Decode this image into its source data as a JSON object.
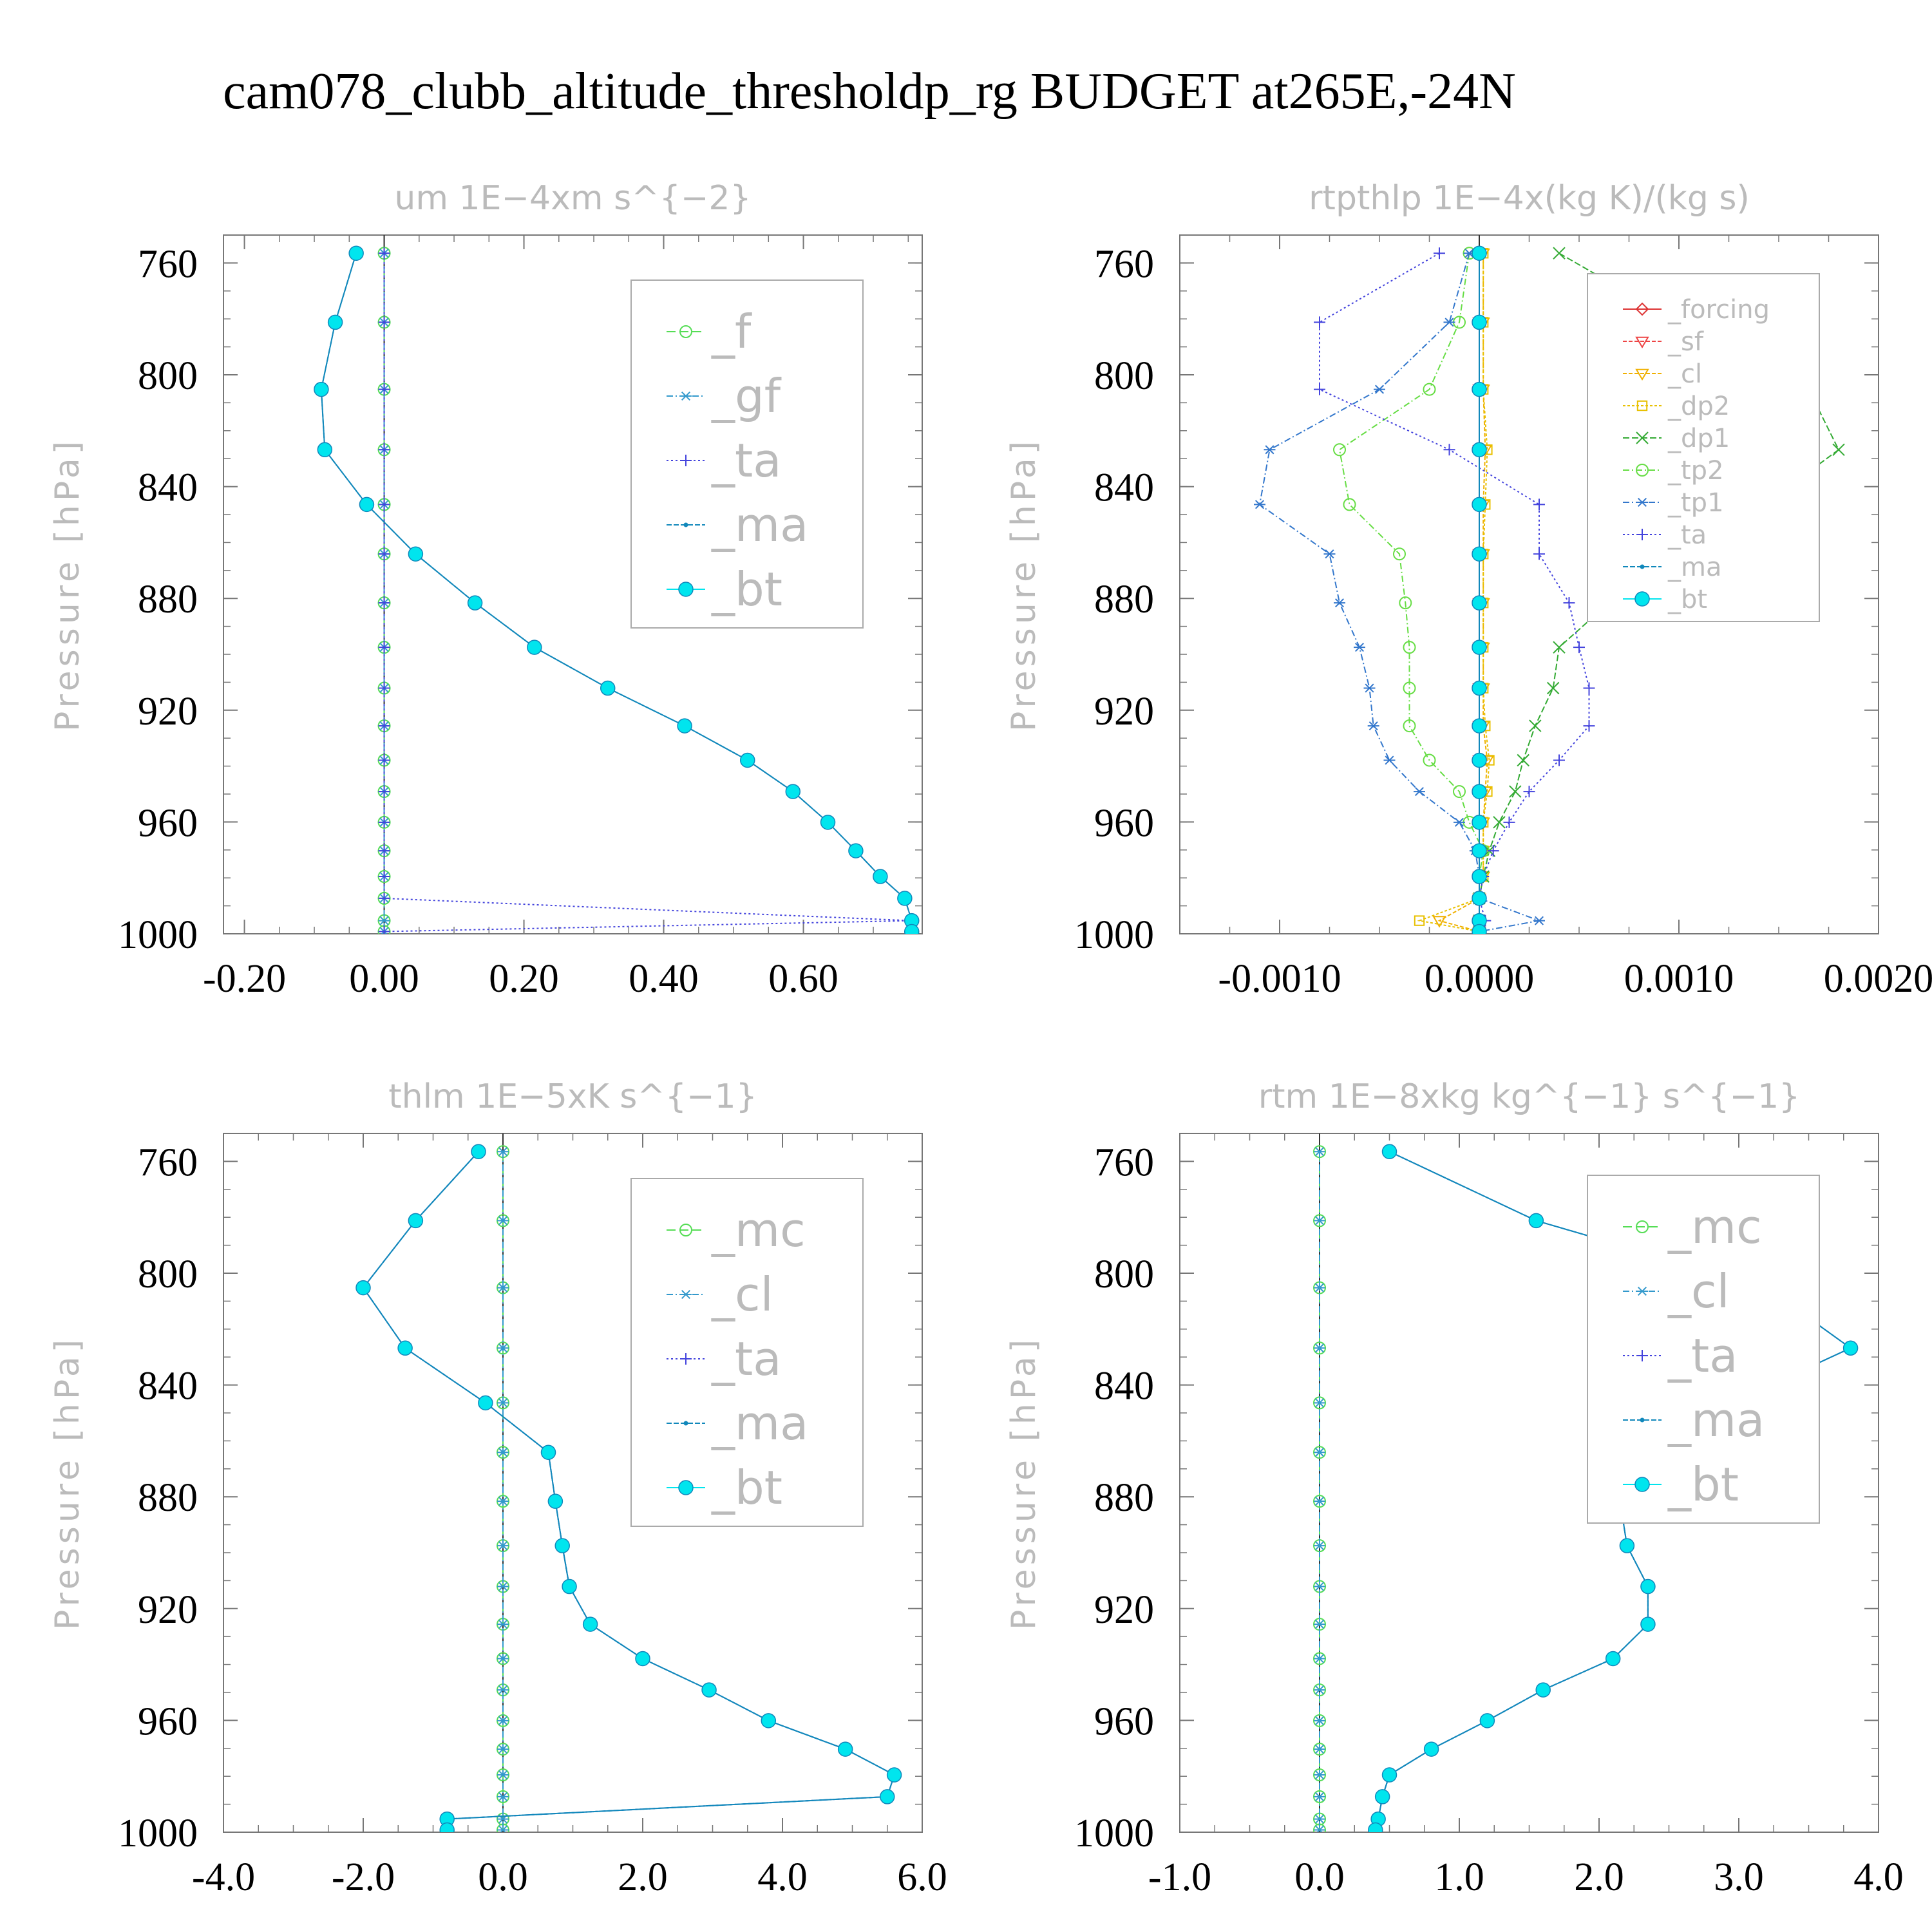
{
  "page": {
    "title": "cam078_clubb_altitude_thresholdp_rg  BUDGET at265E,-24N"
  },
  "colors": {
    "f": "#55dd55",
    "gf": "#3399cc",
    "ta": "#4444dd",
    "ma": "#1188bb",
    "bt": "#00e5ee",
    "forcing": "#dd3333",
    "sf": "#ee4444",
    "cl": "#f0b000",
    "dp2": "#e8c000",
    "dp1": "#33aa33",
    "tp2": "#66dd44",
    "tp1": "#3377cc",
    "mc": "#55dd55",
    "frame": "#777777",
    "label": "#bbbbbb"
  },
  "chart_data": [
    {
      "type": "line",
      "title": "um  1E−4xm s^{−2}",
      "ylabel": "Pressure [hPa]",
      "xlim": [
        -0.23,
        0.77
      ],
      "ylim": [
        750,
        1000
      ],
      "xticks": [
        -0.2,
        0,
        0.2,
        0.4,
        0.6
      ],
      "xtick_labels": [
        "-0.20",
        "0.00",
        "0.20",
        "0.40",
        "0.60"
      ],
      "yticks": [
        760,
        800,
        840,
        880,
        920,
        960,
        1000
      ],
      "ytick_labels": [
        "760",
        "800",
        "840",
        "880",
        "920",
        "960",
        "1000"
      ],
      "levels": [
        756.5,
        781.2,
        805.2,
        826.8,
        846.4,
        864.1,
        881.6,
        897.5,
        912.1,
        925.6,
        937.9,
        949.1,
        960.1,
        970.3,
        979.5,
        987.3,
        995.3,
        999.2
      ],
      "legend": [
        "_f",
        "_gf",
        "_ta",
        "_ma",
        "_bt"
      ],
      "series": [
        {
          "name": "_f",
          "key": "f",
          "marker": "circle",
          "dash": "14,6",
          "values": [
            0,
            0,
            0,
            0,
            0,
            0,
            0,
            0,
            0,
            0,
            0,
            0,
            0,
            0,
            0,
            0,
            0,
            0
          ]
        },
        {
          "name": "_gf",
          "key": "gf",
          "marker": "star",
          "dash": "10,4,2,4",
          "values": [
            0,
            0,
            0,
            0,
            0,
            0,
            0,
            0,
            0,
            0,
            0,
            0,
            0,
            0,
            0,
            0,
            0,
            0
          ]
        },
        {
          "name": "_ta",
          "key": "ta",
          "marker": "plus",
          "dash": "3,4",
          "values": [
            0,
            0,
            0,
            0,
            0,
            0,
            0,
            0,
            0,
            0,
            0,
            0,
            0,
            0,
            0,
            0,
            0.755,
            0
          ]
        },
        {
          "name": "_ma",
          "key": "ma",
          "marker": "dot",
          "dash": "8,3",
          "values": [
            -0.04,
            -0.07,
            -0.09,
            -0.085,
            -0.025,
            0.045,
            0.13,
            0.215,
            0.32,
            0.43,
            0.52,
            0.585,
            0.635,
            0.675,
            0.71,
            0.745,
            0.755,
            0.755
          ]
        },
        {
          "name": "_bt",
          "key": "bt",
          "marker": "fcircle",
          "dash": "",
          "values": [
            -0.04,
            -0.07,
            -0.09,
            -0.085,
            -0.025,
            0.045,
            0.13,
            0.215,
            0.32,
            0.43,
            0.52,
            0.585,
            0.635,
            0.675,
            0.71,
            0.745,
            0.755,
            0.755
          ]
        }
      ]
    },
    {
      "type": "line",
      "title": "rtpthlp  1E−4x(kg K)/(kg s)",
      "ylabel": "Pressure [hPa]",
      "xlim": [
        -0.0015,
        0.002
      ],
      "ylim": [
        750,
        1000
      ],
      "xticks": [
        -0.001,
        0,
        0.001,
        0.002
      ],
      "xtick_labels": [
        "-0.0010",
        "0.0000",
        "0.0010",
        "0.0020"
      ],
      "yticks": [
        760,
        800,
        840,
        880,
        920,
        960,
        1000
      ],
      "ytick_labels": [
        "760",
        "800",
        "840",
        "880",
        "920",
        "960",
        "1000"
      ],
      "levels": [
        756.5,
        781.2,
        805.2,
        826.8,
        846.4,
        864.1,
        881.6,
        897.5,
        912.1,
        925.6,
        937.9,
        949.1,
        960.1,
        970.3,
        979.5,
        987.3,
        995.3,
        999.2
      ],
      "legend": [
        "_forcing",
        "_sf",
        "_cl",
        "_dp2",
        "_dp1",
        "_tp2",
        "_tp1",
        "_ta",
        "_ma",
        "_bt"
      ],
      "series": [
        {
          "name": "_forcing",
          "key": "forcing",
          "marker": "diamond",
          "dash": "",
          "values": [
            0,
            0,
            0,
            0,
            0,
            0,
            0,
            0,
            0,
            0,
            0,
            0,
            0,
            0,
            0,
            0,
            0,
            0
          ]
        },
        {
          "name": "_sf",
          "key": "sf",
          "marker": "tri",
          "dash": "6,3",
          "values": [
            0,
            0,
            0,
            0,
            0,
            0,
            0,
            0,
            0,
            0,
            0,
            0,
            0,
            0,
            0,
            0,
            0,
            0
          ]
        },
        {
          "name": "_cl",
          "key": "cl",
          "marker": "tri",
          "dash": "6,3",
          "values": [
            2e-05,
            2e-05,
            2e-05,
            3e-05,
            2e-05,
            2e-05,
            2e-05,
            2e-05,
            2e-05,
            2e-05,
            4e-05,
            3e-05,
            2e-05,
            2e-05,
            2e-05,
            0,
            -0.0002,
            0
          ]
        },
        {
          "name": "_dp2",
          "key": "dp2",
          "marker": "square",
          "dash": "4,3",
          "values": [
            2e-05,
            2e-05,
            2e-05,
            4e-05,
            3e-05,
            2e-05,
            2e-05,
            2e-05,
            2e-05,
            3e-05,
            5e-05,
            4e-05,
            2e-05,
            2e-05,
            2e-05,
            0,
            -0.0003,
            0
          ]
        },
        {
          "name": "_dp1",
          "key": "dp1",
          "marker": "x",
          "dash": "10,4",
          "values": [
            0.0004,
            0.001,
            0.00165,
            0.0018,
            0.00143,
            0.00095,
            0.00065,
            0.0004,
            0.00037,
            0.00028,
            0.00022,
            0.00018,
            0.0001,
            5e-05,
            2e-05,
            0,
            0,
            0
          ]
        },
        {
          "name": "_tp2",
          "key": "tp2",
          "marker": "circle",
          "dash": "10,4,2,4",
          "values": [
            -5e-05,
            -0.0001,
            -0.00025,
            -0.0007,
            -0.00065,
            -0.0004,
            -0.00037,
            -0.00035,
            -0.00035,
            -0.00035,
            -0.00025,
            -0.0001,
            -5e-05,
            2e-05,
            0,
            0,
            0,
            0
          ]
        },
        {
          "name": "_tp1",
          "key": "tp1",
          "marker": "star",
          "dash": "10,4,2,4",
          "values": [
            -5e-05,
            -0.00015,
            -0.0005,
            -0.00105,
            -0.0011,
            -0.00075,
            -0.0007,
            -0.0006,
            -0.00055,
            -0.00053,
            -0.00045,
            -0.0003,
            -0.0001,
            -2e-05,
            0,
            0,
            0.0003,
            0
          ]
        },
        {
          "name": "_ta",
          "key": "ta",
          "marker": "plus",
          "dash": "3,4",
          "values": [
            -0.0002,
            -0.0008,
            -0.0008,
            -0.00015,
            0.0003,
            0.0003,
            0.00045,
            0.0005,
            0.00055,
            0.00055,
            0.0004,
            0.00025,
            0.00015,
            7e-05,
            2e-05,
            0,
            3e-05,
            0
          ]
        },
        {
          "name": "_ma",
          "key": "ma",
          "marker": "dot",
          "dash": "8,3",
          "values": [
            0,
            0,
            0,
            0,
            0,
            0,
            0,
            0,
            0,
            0,
            0,
            0,
            0,
            0,
            0,
            0,
            0,
            0
          ]
        },
        {
          "name": "_bt",
          "key": "bt",
          "marker": "fcircle",
          "dash": "",
          "values": [
            0,
            0,
            0,
            0,
            0,
            0,
            0,
            0,
            0,
            0,
            0,
            0,
            0,
            0,
            0,
            0,
            0,
            0
          ]
        }
      ]
    },
    {
      "type": "line",
      "title": "thlm  1E−5xK s^{−1}",
      "ylabel": "Pressure [hPa]",
      "xlim": [
        -4.0,
        6.0
      ],
      "ylim": [
        750,
        1000
      ],
      "xticks": [
        -4,
        -2,
        0,
        2,
        4,
        6
      ],
      "xtick_labels": [
        "-4.0",
        "-2.0",
        "0.0",
        "2.0",
        "4.0",
        "6.0"
      ],
      "yticks": [
        760,
        800,
        840,
        880,
        920,
        960,
        1000
      ],
      "ytick_labels": [
        "760",
        "800",
        "840",
        "880",
        "920",
        "960",
        "1000"
      ],
      "levels": [
        756.5,
        781.2,
        805.2,
        826.8,
        846.4,
        864.1,
        881.6,
        897.5,
        912.1,
        925.6,
        937.9,
        949.1,
        960.1,
        970.3,
        979.5,
        987.3,
        995.3,
        999.2
      ],
      "legend": [
        "_mc",
        "_cl",
        "_ta",
        "_ma",
        "_bt"
      ],
      "series": [
        {
          "name": "_mc",
          "key": "mc",
          "marker": "circle",
          "dash": "14,6",
          "values": [
            0,
            0,
            0,
            0,
            0,
            0,
            0,
            0,
            0,
            0,
            0,
            0,
            0,
            0,
            0,
            0,
            0,
            0
          ]
        },
        {
          "name": "_cl",
          "key": "gf",
          "marker": "star",
          "dash": "10,4,2,4",
          "values": [
            0,
            0,
            0,
            0,
            0,
            0,
            0,
            0,
            0,
            0,
            0,
            0,
            0,
            0,
            0,
            0,
            0,
            0
          ]
        },
        {
          "name": "_ta",
          "key": "ta",
          "marker": "plus",
          "dash": "3,4",
          "values": [
            -0.35,
            -1.25,
            -2.0,
            -1.4,
            -0.25,
            0.65,
            0.75,
            0.85,
            0.95,
            1.25,
            2.0,
            2.95,
            3.8,
            4.9,
            5.6,
            5.5,
            -0.8,
            -0.8
          ]
        },
        {
          "name": "_ma",
          "key": "ma",
          "marker": "dot",
          "dash": "8,3",
          "values": [
            -0.35,
            -1.25,
            -2.0,
            -1.4,
            -0.25,
            0.65,
            0.75,
            0.85,
            0.95,
            1.25,
            2.0,
            2.95,
            3.8,
            4.9,
            5.6,
            5.5,
            -0.8,
            -0.8
          ]
        },
        {
          "name": "_bt",
          "key": "bt",
          "marker": "fcircle",
          "dash": "",
          "values": [
            -0.35,
            -1.25,
            -2.0,
            -1.4,
            -0.25,
            0.65,
            0.75,
            0.85,
            0.95,
            1.25,
            2.0,
            2.95,
            3.8,
            4.9,
            5.6,
            5.5,
            -0.8,
            -0.8
          ]
        }
      ]
    },
    {
      "type": "line",
      "title": "rtm  1E−8xkg kg^{−1} s^{−1}",
      "ylabel": "Pressure [hPa]",
      "xlim": [
        -1.0,
        4.0
      ],
      "ylim": [
        750,
        1000
      ],
      "xticks": [
        -1,
        0,
        1,
        2,
        3,
        4
      ],
      "xtick_labels": [
        "-1.0",
        "0.0",
        "1.0",
        "2.0",
        "3.0",
        "4.0"
      ],
      "yticks": [
        760,
        800,
        840,
        880,
        920,
        960,
        1000
      ],
      "ytick_labels": [
        "760",
        "800",
        "840",
        "880",
        "920",
        "960",
        "1000"
      ],
      "levels": [
        756.5,
        781.2,
        805.2,
        826.8,
        846.4,
        864.1,
        881.6,
        897.5,
        912.1,
        925.6,
        937.9,
        949.1,
        960.1,
        970.3,
        979.5,
        987.3,
        995.3,
        999.2
      ],
      "legend": [
        "_mc",
        "_cl",
        "_ta",
        "_ma",
        "_bt"
      ],
      "series": [
        {
          "name": "_mc",
          "key": "mc",
          "marker": "circle",
          "dash": "14,6",
          "values": [
            0,
            0,
            0,
            0,
            0,
            0,
            0,
            0,
            0,
            0,
            0,
            0,
            0,
            0,
            0,
            0,
            0,
            0
          ]
        },
        {
          "name": "_cl",
          "key": "gf",
          "marker": "star",
          "dash": "10,4,2,4",
          "values": [
            0,
            0,
            0,
            0,
            0,
            0,
            0,
            0,
            0,
            0,
            0,
            0,
            0,
            0,
            0,
            0,
            0,
            0
          ]
        },
        {
          "name": "_ta",
          "key": "ta",
          "marker": "plus",
          "dash": "3,4",
          "values": [
            0.5,
            1.55,
            3.2,
            3.8,
            2.95,
            2.2,
            2.15,
            2.2,
            2.35,
            2.35,
            2.1,
            1.6,
            1.2,
            0.8,
            0.5,
            0.45,
            0.42,
            0.4
          ]
        },
        {
          "name": "_ma",
          "key": "ma",
          "marker": "dot",
          "dash": "8,3",
          "values": [
            0.5,
            1.55,
            3.2,
            3.8,
            2.95,
            2.2,
            2.15,
            2.2,
            2.35,
            2.35,
            2.1,
            1.6,
            1.2,
            0.8,
            0.5,
            0.45,
            0.42,
            0.4
          ]
        },
        {
          "name": "_bt",
          "key": "bt",
          "marker": "fcircle",
          "dash": "",
          "values": [
            0.5,
            1.55,
            3.2,
            3.8,
            2.95,
            2.2,
            2.15,
            2.2,
            2.35,
            2.35,
            2.1,
            1.6,
            1.2,
            0.8,
            0.5,
            0.45,
            0.42,
            0.4
          ]
        }
      ]
    }
  ]
}
